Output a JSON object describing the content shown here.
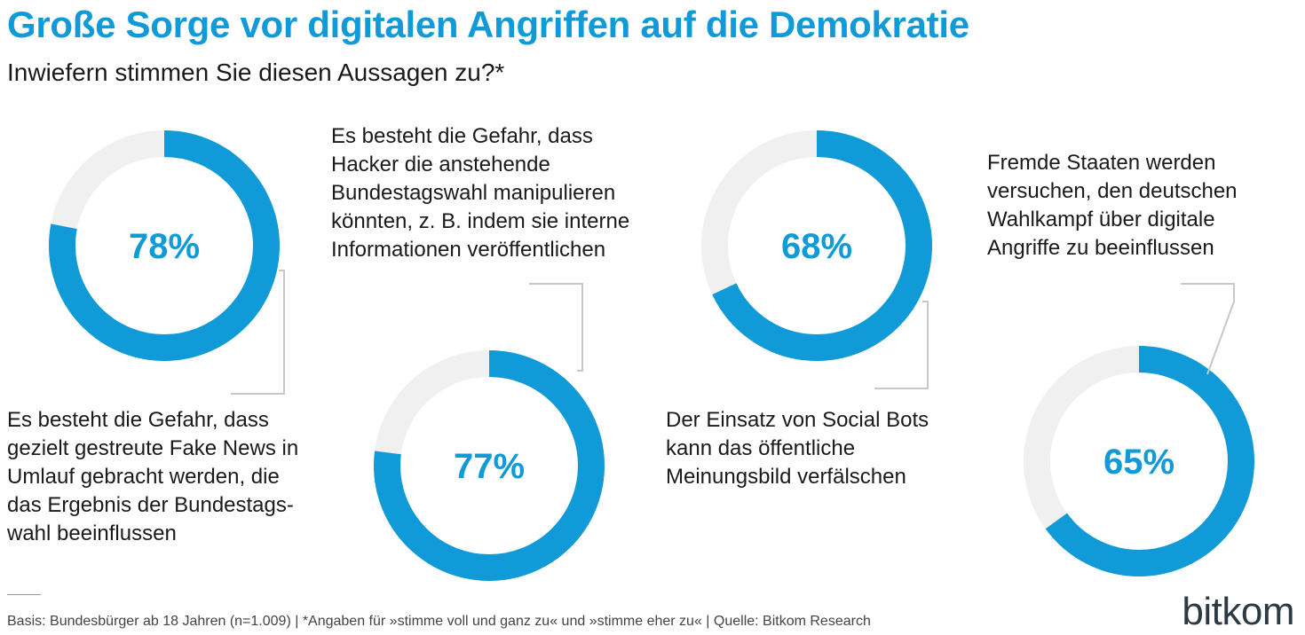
{
  "header": {
    "title": "Große Sorge vor digitalen Angriffen auf die Demokratie",
    "subtitle": "Inwiefern stimmen Sie diesen Aussagen zu?*"
  },
  "chart_data": {
    "type": "pie",
    "variant": "donut",
    "title": "Große Sorge vor digitalen Angriffen auf die Demokratie",
    "subtitle": "Inwiefern stimmen Sie diesen Aussagen zu?*",
    "unit": "%",
    "items": [
      {
        "value": 78,
        "value_label": "78%",
        "statement": "Es besteht die Gefahr, dass\ngezielt gestreute Fake News in\nUmlauf gebracht werden, die\ndas Ergebnis der Bundestags-\nwahl beeinflussen"
      },
      {
        "value": 77,
        "value_label": "77%",
        "statement": "Es besteht die Gefahr, dass\nHacker die anstehende\nBundestagswahl manipulieren\nkönnten, z. B. indem sie interne\nInformationen veröffentlichen"
      },
      {
        "value": 68,
        "value_label": "68%",
        "statement": "Der Einsatz von Social Bots\nkann das öffentliche\nMeinungsbild verfälschen"
      },
      {
        "value": 65,
        "value_label": "65%",
        "statement": "Fremde Staaten werden\nversuchen, den deutschen\nWahlkampf über digitale\nAngriffe zu beeinflussen"
      }
    ],
    "colors": {
      "filled": "#109bd8",
      "remainder": "#f0f0f0",
      "connector": "#c8c8c8",
      "title": "#109bd8"
    }
  },
  "footer": {
    "note": "Basis: Bundesbürger ab 18 Jahren (n=1.009) | *Angaben für »stimme voll und ganz zu« und »stimme eher zu« | Quelle: Bitkom Research",
    "logo": "bitkom"
  }
}
